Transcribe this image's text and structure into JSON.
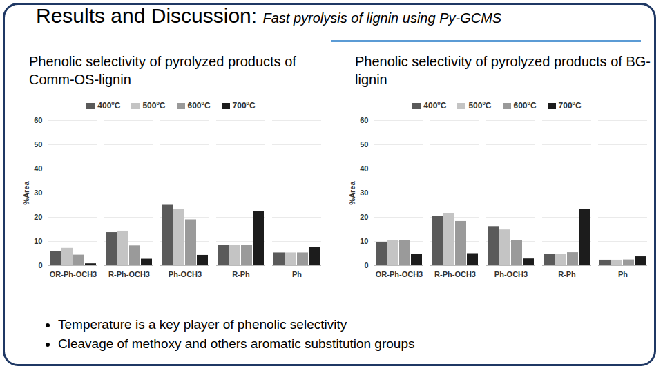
{
  "title": "Results and Discussion:",
  "subtitle": "Fast pyrolysis of lignin using Py-GCMS",
  "chart_data": [
    {
      "type": "bar",
      "title": "Phenolic selectivity of pyrolyzed products of Comm-OS-lignin",
      "categories": [
        "OR-Ph-OCH3",
        "R-Ph-OCH3",
        "Ph-OCH3",
        "R-Ph",
        "Ph"
      ],
      "series": [
        {
          "name": "400ºC",
          "color": "#5a5a5a",
          "values": [
            5.8,
            13.7,
            25,
            8.3,
            5.3
          ]
        },
        {
          "name": "500ºC",
          "color": "#c4c4c4",
          "values": [
            7.2,
            14.3,
            23.2,
            8.4,
            5.3
          ]
        },
        {
          "name": "600ºC",
          "color": "#9a9a9a",
          "values": [
            4.4,
            8.2,
            19,
            8.5,
            5.3
          ]
        },
        {
          "name": "700ºC",
          "color": "#1c1c1c",
          "values": [
            0.8,
            2.7,
            4.3,
            22.3,
            7.7
          ]
        }
      ],
      "ylabel": "%Area",
      "ylim": [
        0,
        60
      ],
      "yticks": [
        0,
        10,
        20,
        30,
        40,
        50,
        60
      ],
      "grid": true,
      "legend": "top"
    },
    {
      "type": "bar",
      "title": "Phenolic selectivity of pyrolyzed products of BG-lignin",
      "categories": [
        "OR-Ph-OCH3",
        "R-Ph-OCH3",
        "Ph-OCH3",
        "R-Ph",
        "Ph"
      ],
      "series": [
        {
          "name": "400ºC",
          "color": "#5a5a5a",
          "values": [
            9.5,
            20.3,
            16.2,
            4.7,
            2.3
          ]
        },
        {
          "name": "500ºC",
          "color": "#c4c4c4",
          "values": [
            10.3,
            21.7,
            14.8,
            4.8,
            2.3
          ]
        },
        {
          "name": "600ºC",
          "color": "#9a9a9a",
          "values": [
            10.3,
            18.3,
            10.5,
            5.4,
            2.4
          ]
        },
        {
          "name": "700ºC",
          "color": "#1c1c1c",
          "values": [
            4.6,
            5,
            2.8,
            23.3,
            3.7
          ]
        }
      ],
      "ylabel": "%Area",
      "ylim": [
        0,
        60
      ],
      "yticks": [
        0,
        10,
        20,
        30,
        40,
        50,
        60
      ],
      "grid": true,
      "legend": "top"
    }
  ],
  "bullets": [
    "Temperature is a key player of phenolic selectivity",
    "Cleavage of methoxy and others aromatic substitution groups"
  ]
}
